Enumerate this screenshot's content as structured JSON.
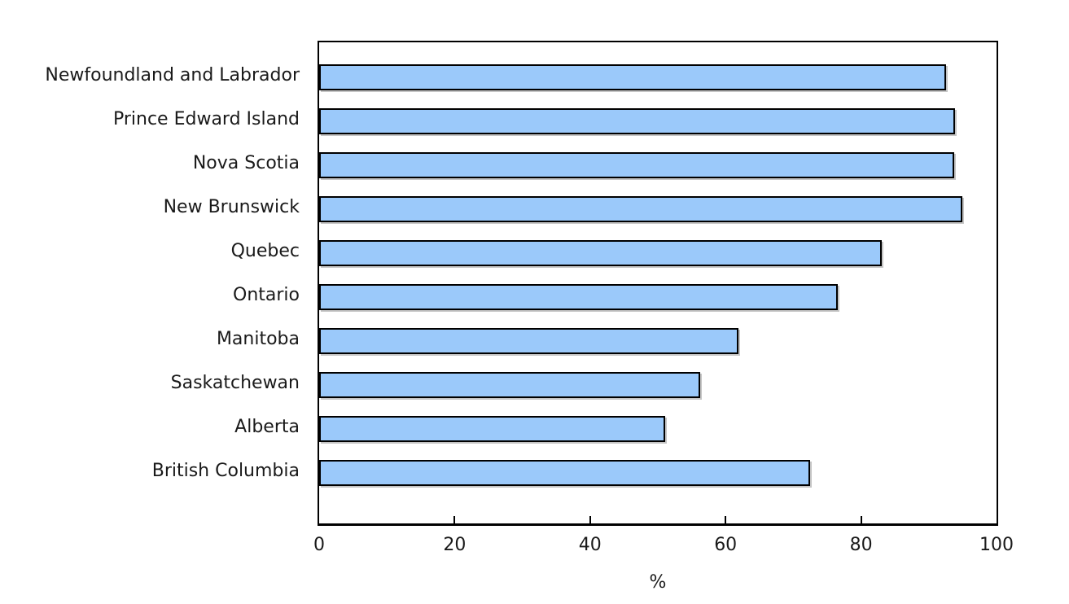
{
  "chart_data": {
    "type": "bar",
    "orientation": "horizontal",
    "title": "",
    "xlabel": "%",
    "ylabel": "",
    "xlim": [
      0,
      100
    ],
    "xticks": [
      0,
      20,
      40,
      60,
      80,
      100
    ],
    "grid": false,
    "legend": false,
    "bar_color": "#9BC9FA",
    "bar_border_color": "#000000",
    "frame_color": "#000000",
    "categories": [
      "Newfoundland and Labrador",
      "Prince Edward Island",
      "Nova Scotia",
      "New Brunswick",
      "Quebec",
      "Ontario",
      "Manitoba",
      "Saskatchewan",
      "Alberta",
      "British Columbia"
    ],
    "values": [
      92.5,
      93.9,
      93.7,
      95.0,
      83.0,
      76.6,
      61.9,
      56.3,
      51.1,
      72.5
    ]
  }
}
